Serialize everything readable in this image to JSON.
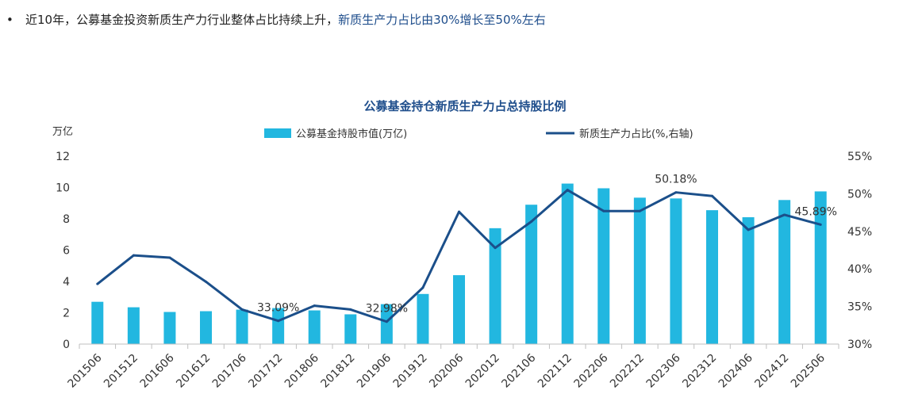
{
  "headline": {
    "bullet": "•",
    "text_plain": "近10年，公募基金投资新质生产力行业整体占比持续上升，",
    "text_highlight": "新质生产力占比由30%增长至50%左右"
  },
  "colors": {
    "bar": "#22b7e0",
    "line": "#1b4f8a",
    "title": "#1f4e8c",
    "axis_text": "#333333",
    "axis_line": "#bfbfbf"
  },
  "chart_data": {
    "type": "bar",
    "title": "公募基金持仓新质生产力占总持股比例",
    "ylabel": "万亿",
    "ylim": [
      0,
      12
    ],
    "yticks": [
      "0",
      "2",
      "4",
      "6",
      "8",
      "10",
      "12"
    ],
    "y2lim": [
      30,
      55
    ],
    "y2ticks": [
      "30%",
      "35%",
      "40%",
      "45%",
      "50%",
      "55%"
    ],
    "categories": [
      "201506",
      "201512",
      "201606",
      "201612",
      "201706",
      "201712",
      "201806",
      "201812",
      "201906",
      "201912",
      "202006",
      "202012",
      "202106",
      "202112",
      "202206",
      "202212",
      "202306",
      "202312",
      "202406",
      "202412",
      "202506"
    ],
    "series": [
      {
        "name": "公募基金持股市值(万亿)",
        "type": "bar",
        "axis": "left",
        "values": [
          2.7,
          2.35,
          2.05,
          2.1,
          2.2,
          2.3,
          2.15,
          1.9,
          2.55,
          3.2,
          4.4,
          7.4,
          8.9,
          10.25,
          9.95,
          9.35,
          9.3,
          8.55,
          8.1,
          9.2,
          9.75
        ]
      },
      {
        "name": "新质生产力占比(%,右轴)",
        "type": "line",
        "axis": "right",
        "values": [
          38.0,
          41.8,
          41.5,
          38.3,
          34.6,
          33.09,
          35.1,
          34.6,
          32.98,
          37.5,
          47.6,
          42.8,
          46.3,
          50.5,
          47.7,
          47.7,
          50.18,
          49.7,
          45.2,
          47.2,
          45.89
        ]
      }
    ],
    "annotations": [
      {
        "index": 5,
        "text": "33.09%"
      },
      {
        "index": 8,
        "text": "32.98%"
      },
      {
        "index": 16,
        "text": "50.18%"
      },
      {
        "index": 20,
        "text": "45.89%"
      }
    ]
  }
}
